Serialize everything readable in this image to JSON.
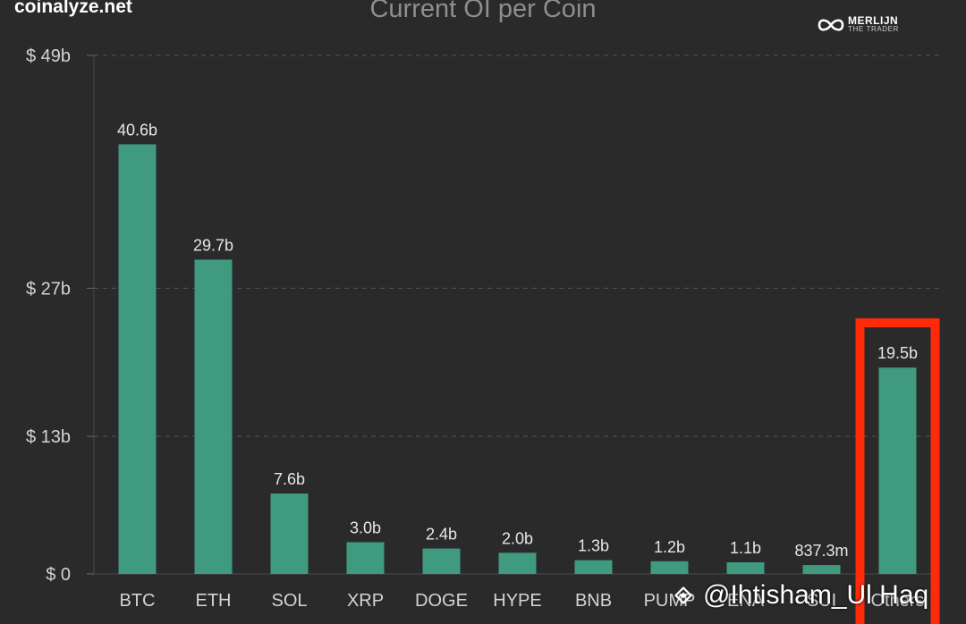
{
  "source_label": "coinalyze.net",
  "brand": {
    "name": "MERLIJN",
    "tagline": "THE TRADER"
  },
  "watermark": {
    "text": "@Ihtisham_Ul Haq",
    "icon": "binance-diamond-icon"
  },
  "colors": {
    "background": "#2a2a2a",
    "bar": "#3f9a7f",
    "highlight_box": "#ff2a0a",
    "label": "#e6e6e6",
    "axis_label": "#d4d4d4",
    "grid": "#555555"
  },
  "chart_data": {
    "type": "bar",
    "title": "Current OI per Coin",
    "xlabel": "",
    "ylabel": "",
    "ylim": [
      0,
      49
    ],
    "yticks": [
      {
        "value": 0,
        "label": "$ 0"
      },
      {
        "value": 13,
        "label": "$ 13b"
      },
      {
        "value": 27,
        "label": "$ 27b"
      },
      {
        "value": 49,
        "label": "$ 49b"
      }
    ],
    "grid": true,
    "categories": [
      "BTC",
      "ETH",
      "SOL",
      "XRP",
      "DOGE",
      "HYPE",
      "BNB",
      "PUMP",
      "ENA",
      "SUI",
      "Others"
    ],
    "values": [
      40.6,
      29.7,
      7.6,
      3.0,
      2.4,
      2.0,
      1.3,
      1.2,
      1.1,
      0.8373,
      19.5
    ],
    "value_labels": [
      "40.6b",
      "29.7b",
      "7.6b",
      "3.0b",
      "2.4b",
      "2.0b",
      "1.3b",
      "1.2b",
      "1.1b",
      "837.3m",
      "19.5b"
    ],
    "highlighted_category": "Others"
  }
}
